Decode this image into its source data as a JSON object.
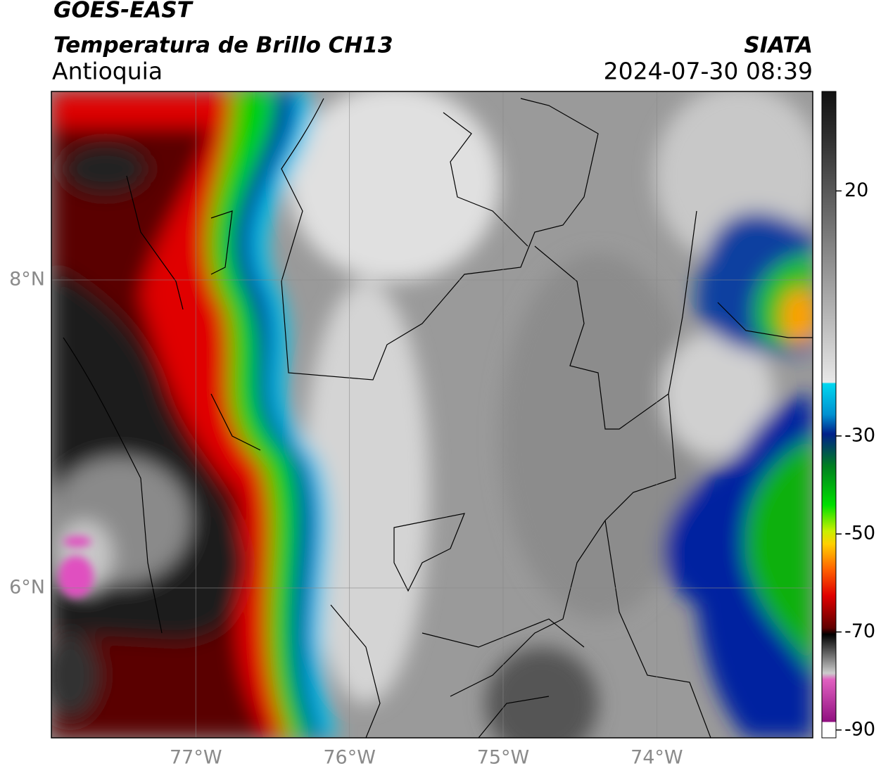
{
  "header": {
    "title": "GOES-EAST",
    "subtitle": "Temperatura de Brillo CH13",
    "region": "Antioquia",
    "source": "SIATA",
    "datetime": "2024-07-30 08:39"
  },
  "map": {
    "lat_ticks": [
      {
        "value": 8,
        "label": "8°N"
      },
      {
        "value": 6,
        "label": "6°N"
      }
    ],
    "lon_ticks": [
      {
        "value": -77,
        "label": "77°W"
      },
      {
        "value": -76,
        "label": "76°W"
      },
      {
        "value": -75,
        "label": "75°W"
      },
      {
        "value": -74,
        "label": "74°W"
      }
    ]
  },
  "colorbar": {
    "ticks": [
      20,
      -30,
      -50,
      -70,
      -90
    ]
  }
}
